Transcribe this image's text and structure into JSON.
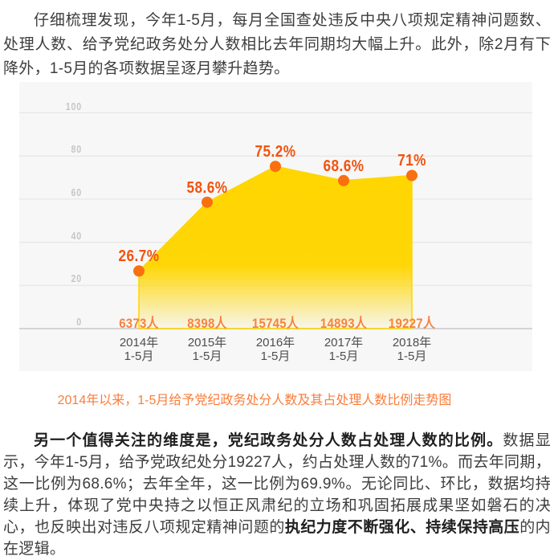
{
  "article": {
    "paragraph1": [
      {
        "text": "仔细梳理发现，今年1-5月，每月全国查处违反中央八项规定精神问题数、处理人数、给予党纪政务处分人数相比去年同期均大幅上升。此外，除2月有下降外，1-5月的各项数据呈逐月攀升趋势。",
        "bold": false
      }
    ],
    "paragraph2": [
      {
        "text": "另一个值得关注的维度是，党纪政务处分人数占处理人数的比例。",
        "bold": true
      },
      {
        "text": "数据显示，今年1-5月，给予党政纪处分19227人，约占处理人数的71%。而去年同期，这一比例为68.6%；去年全年，这一比例为69.9%。无论同比、环比，数据均持续上升，体现了党中央持之以恒正风肃纪的立场和巩固拓展成果坚如磐石的决心，也反映出对违反八项规定精神问题的",
        "bold": false
      },
      {
        "text": "执纪力度不断强化、持续保持高压",
        "bold": true
      },
      {
        "text": "的内在逻辑。",
        "bold": false
      }
    ]
  },
  "chart_data": {
    "type": "area",
    "caption": "2014年以来，1-5月给予党纪政务处分人数及其占处理人数比例走势图",
    "categories": [
      {
        "year": "2014年",
        "period": "1-5月"
      },
      {
        "year": "2015年",
        "period": "1-5月"
      },
      {
        "year": "2016年",
        "period": "1-5月"
      },
      {
        "year": "2017年",
        "period": "1-5月"
      },
      {
        "year": "2018年",
        "period": "1-5月"
      }
    ],
    "series": [
      {
        "name": "给予党纪政务处分人数占处理人数比例(%)",
        "values": [
          26.7,
          58.6,
          75.2,
          68.6,
          71
        ]
      },
      {
        "name": "给予党纪政务处分人数(人)",
        "values": [
          6373,
          8398,
          15745,
          14893,
          19227
        ]
      }
    ],
    "point_labels": [
      "26.7%",
      "58.6%",
      "75.2%",
      "68.6%",
      "71%"
    ],
    "count_labels": [
      "6373人",
      "8398人",
      "15745人",
      "14893人",
      "19227人"
    ],
    "y_ticks": [
      0,
      20,
      40,
      60,
      80,
      100
    ],
    "ylim": [
      0,
      114
    ],
    "grid": true,
    "legend": "none",
    "colors": {
      "panel_bg": "#f7f7f7",
      "area_fill": "#ffd601",
      "area_edge": "#fed500",
      "point": "#f8700f",
      "percent_label": "#f2530e",
      "count_label": "#f8823e",
      "axis_label": "#4e4e4e",
      "tick_label": "#c6c6c6",
      "grid_line": "#e3e3e3",
      "zero_line": "#d4d4d4",
      "caption": "#fa7d3c"
    }
  }
}
